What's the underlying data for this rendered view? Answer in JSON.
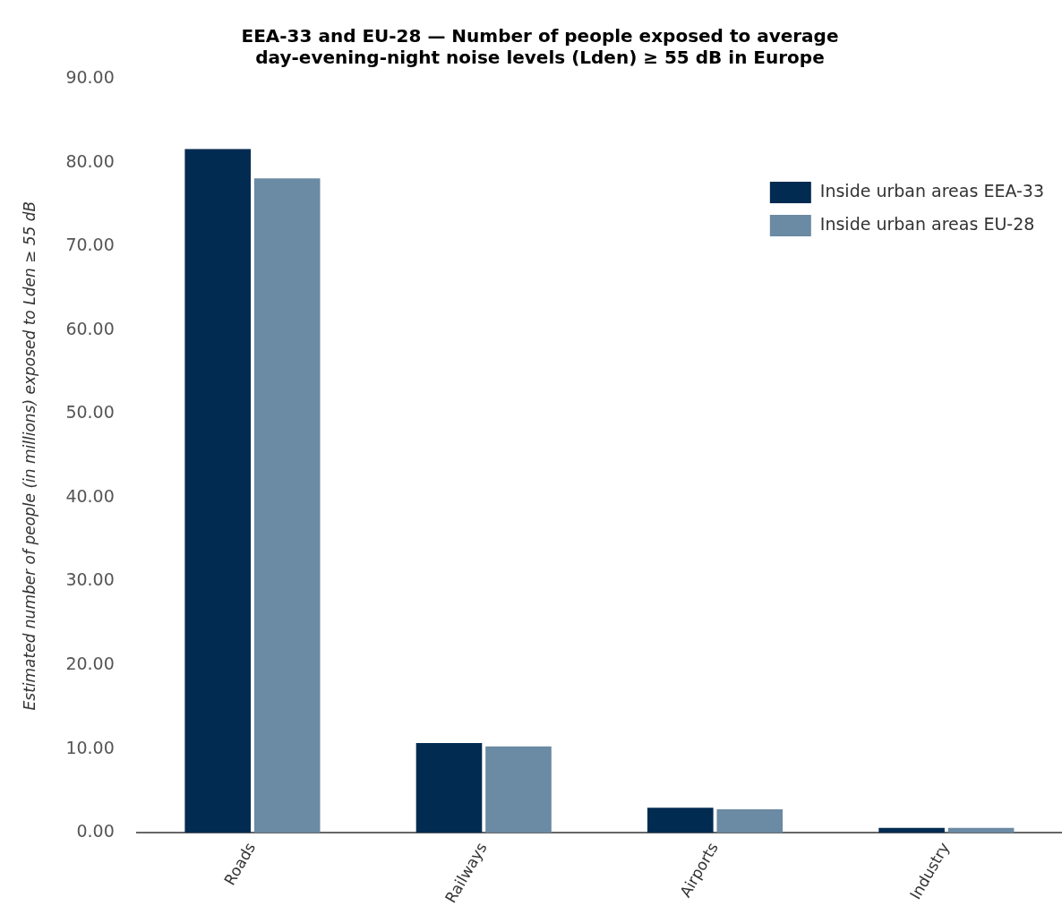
{
  "chart_data": {
    "type": "bar",
    "title": "EEA-33 and EU-28 — Number of people exposed to average day-evening-night noise levels (Lden) ≥ 55 dB in Europe",
    "ylabel": "Estimated number of people (in millions) exposed to Lden ≥ 55 dB",
    "categories": [
      "Roads",
      "Railways",
      "Airports",
      "Industry"
    ],
    "series": [
      {
        "name": "Inside urban areas EEA-33",
        "color": "#022b51",
        "values": [
          81.6,
          10.7,
          3.0,
          0.6
        ]
      },
      {
        "name": "Inside urban areas EU-28",
        "color": "#6b8aa3",
        "values": [
          78.1,
          10.3,
          2.8,
          0.6
        ]
      }
    ],
    "ylim": [
      0,
      90
    ],
    "yticks": [
      {
        "value": 0,
        "label": "0.00"
      },
      {
        "value": 10,
        "label": "10.00"
      },
      {
        "value": 20,
        "label": "20.00"
      },
      {
        "value": 30,
        "label": "30.00"
      },
      {
        "value": 40,
        "label": "40.00"
      },
      {
        "value": 50,
        "label": "50.00"
      },
      {
        "value": 60,
        "label": "60.00"
      },
      {
        "value": 70,
        "label": "70.00"
      },
      {
        "value": 80,
        "label": "80.00"
      },
      {
        "value": 90,
        "label": "90.00"
      }
    ],
    "grid": false,
    "legend": "top right"
  }
}
